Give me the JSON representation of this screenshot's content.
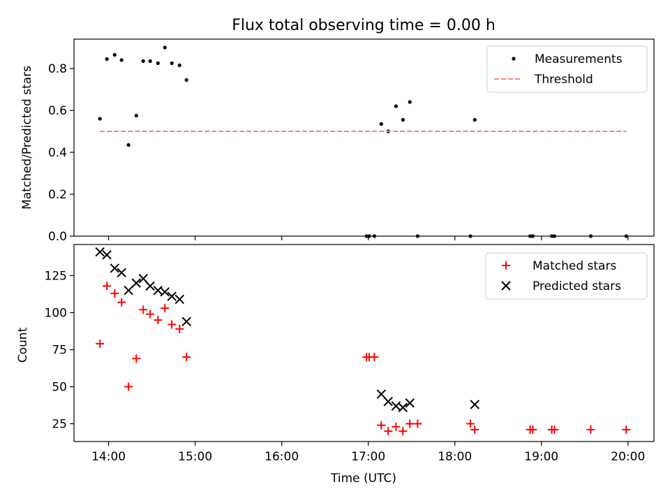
{
  "title": "Flux total observing time = 0.00 h",
  "x_axis": {
    "label": "Time (UTC)",
    "range_hours": [
      13.6,
      20.3
    ],
    "ticks": [
      {
        "hour": 14,
        "label": "14:00"
      },
      {
        "hour": 15,
        "label": "15:00"
      },
      {
        "hour": 16,
        "label": "16:00"
      },
      {
        "hour": 17,
        "label": "17:00"
      },
      {
        "hour": 18,
        "label": "18:00"
      },
      {
        "hour": 19,
        "label": "19:00"
      },
      {
        "hour": 20,
        "label": "20:00"
      }
    ]
  },
  "chart_data": [
    {
      "type": "scatter",
      "ylabel": "Matched/Predicted stars",
      "ylim": [
        0,
        0.94
      ],
      "yticks": [
        {
          "value": 0.0,
          "label": "0.0"
        },
        {
          "value": 0.2,
          "label": "0.2"
        },
        {
          "value": 0.4,
          "label": "0.4"
        },
        {
          "value": 0.6,
          "label": "0.6"
        },
        {
          "value": 0.8,
          "label": "0.8"
        }
      ],
      "legend_position": "top-right",
      "series": [
        {
          "name": "Measurements",
          "marker": "dot",
          "color": "#000000",
          "points": [
            [
              13.9,
              0.56
            ],
            [
              13.98,
              0.845
            ],
            [
              14.07,
              0.865
            ],
            [
              14.15,
              0.84
            ],
            [
              14.23,
              0.435
            ],
            [
              14.32,
              0.575
            ],
            [
              14.4,
              0.835
            ],
            [
              14.48,
              0.835
            ],
            [
              14.57,
              0.825
            ],
            [
              14.65,
              0.9
            ],
            [
              14.73,
              0.825
            ],
            [
              14.82,
              0.815
            ],
            [
              14.9,
              0.745
            ],
            [
              16.98,
              0.0
            ],
            [
              17.01,
              0.0
            ],
            [
              17.07,
              0.0
            ],
            [
              17.15,
              0.535
            ],
            [
              17.23,
              0.5
            ],
            [
              17.32,
              0.62
            ],
            [
              17.4,
              0.555
            ],
            [
              17.48,
              0.64
            ],
            [
              17.57,
              0.0
            ],
            [
              18.18,
              0.0
            ],
            [
              18.23,
              0.555
            ],
            [
              18.87,
              0.0
            ],
            [
              18.9,
              0.0
            ],
            [
              19.12,
              0.0
            ],
            [
              19.15,
              0.0
            ],
            [
              19.57,
              0.0
            ],
            [
              19.98,
              0.0
            ]
          ]
        },
        {
          "name": "Threshold",
          "marker": "dashed-line",
          "color": "#ff7f7f",
          "x": [
            13.9,
            19.98
          ],
          "y": [
            0.5,
            0.5
          ]
        }
      ]
    },
    {
      "type": "scatter",
      "ylabel": "Count",
      "ylim": [
        13,
        146
      ],
      "yticks": [
        {
          "value": 25,
          "label": "25"
        },
        {
          "value": 50,
          "label": "50"
        },
        {
          "value": 75,
          "label": "75"
        },
        {
          "value": 100,
          "label": "100"
        },
        {
          "value": 125,
          "label": "125"
        }
      ],
      "legend_position": "top-right",
      "series": [
        {
          "name": "Matched stars",
          "marker": "plus",
          "color": "#ff0000",
          "points": [
            [
              13.9,
              79
            ],
            [
              13.98,
              118
            ],
            [
              14.07,
              113
            ],
            [
              14.15,
              107
            ],
            [
              14.23,
              50
            ],
            [
              14.32,
              69
            ],
            [
              14.4,
              102
            ],
            [
              14.48,
              99
            ],
            [
              14.57,
              95
            ],
            [
              14.65,
              103
            ],
            [
              14.73,
              92
            ],
            [
              14.82,
              89
            ],
            [
              14.9,
              70
            ],
            [
              16.98,
              70
            ],
            [
              17.01,
              70
            ],
            [
              17.07,
              70
            ],
            [
              17.15,
              24
            ],
            [
              17.23,
              20
            ],
            [
              17.32,
              23
            ],
            [
              17.4,
              20
            ],
            [
              17.48,
              25
            ],
            [
              17.57,
              25
            ],
            [
              18.18,
              25
            ],
            [
              18.23,
              21
            ],
            [
              18.87,
              21
            ],
            [
              18.9,
              21
            ],
            [
              19.12,
              21
            ],
            [
              19.15,
              21
            ],
            [
              19.57,
              21
            ],
            [
              19.98,
              21
            ]
          ]
        },
        {
          "name": "Predicted stars",
          "marker": "x",
          "color": "#000000",
          "points": [
            [
              13.9,
              141
            ],
            [
              13.98,
              139
            ],
            [
              14.07,
              130
            ],
            [
              14.15,
              127
            ],
            [
              14.23,
              115
            ],
            [
              14.32,
              120
            ],
            [
              14.4,
              123
            ],
            [
              14.48,
              118
            ],
            [
              14.57,
              115
            ],
            [
              14.65,
              114
            ],
            [
              14.73,
              111
            ],
            [
              14.82,
              109
            ],
            [
              14.9,
              94
            ],
            [
              17.15,
              45
            ],
            [
              17.23,
              40
            ],
            [
              17.32,
              37
            ],
            [
              17.4,
              36
            ],
            [
              17.48,
              39
            ],
            [
              18.23,
              38
            ]
          ]
        }
      ]
    }
  ]
}
